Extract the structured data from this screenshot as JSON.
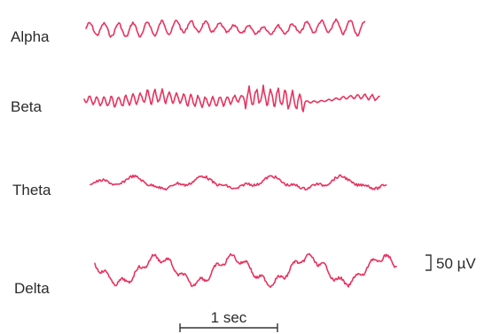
{
  "bands": [
    {
      "label": "Alpha",
      "waveform": "alpha"
    },
    {
      "label": "Beta",
      "waveform": "beta"
    },
    {
      "label": "Theta",
      "waveform": "theta"
    },
    {
      "label": "Delta",
      "waveform": "delta"
    }
  ],
  "time_scale": {
    "label": "1 sec"
  },
  "amplitude_scale": {
    "label": "50 µV"
  },
  "colors": {
    "trace": "#e8335f",
    "text": "#2b2b2b",
    "scalebar": "#333333"
  }
}
